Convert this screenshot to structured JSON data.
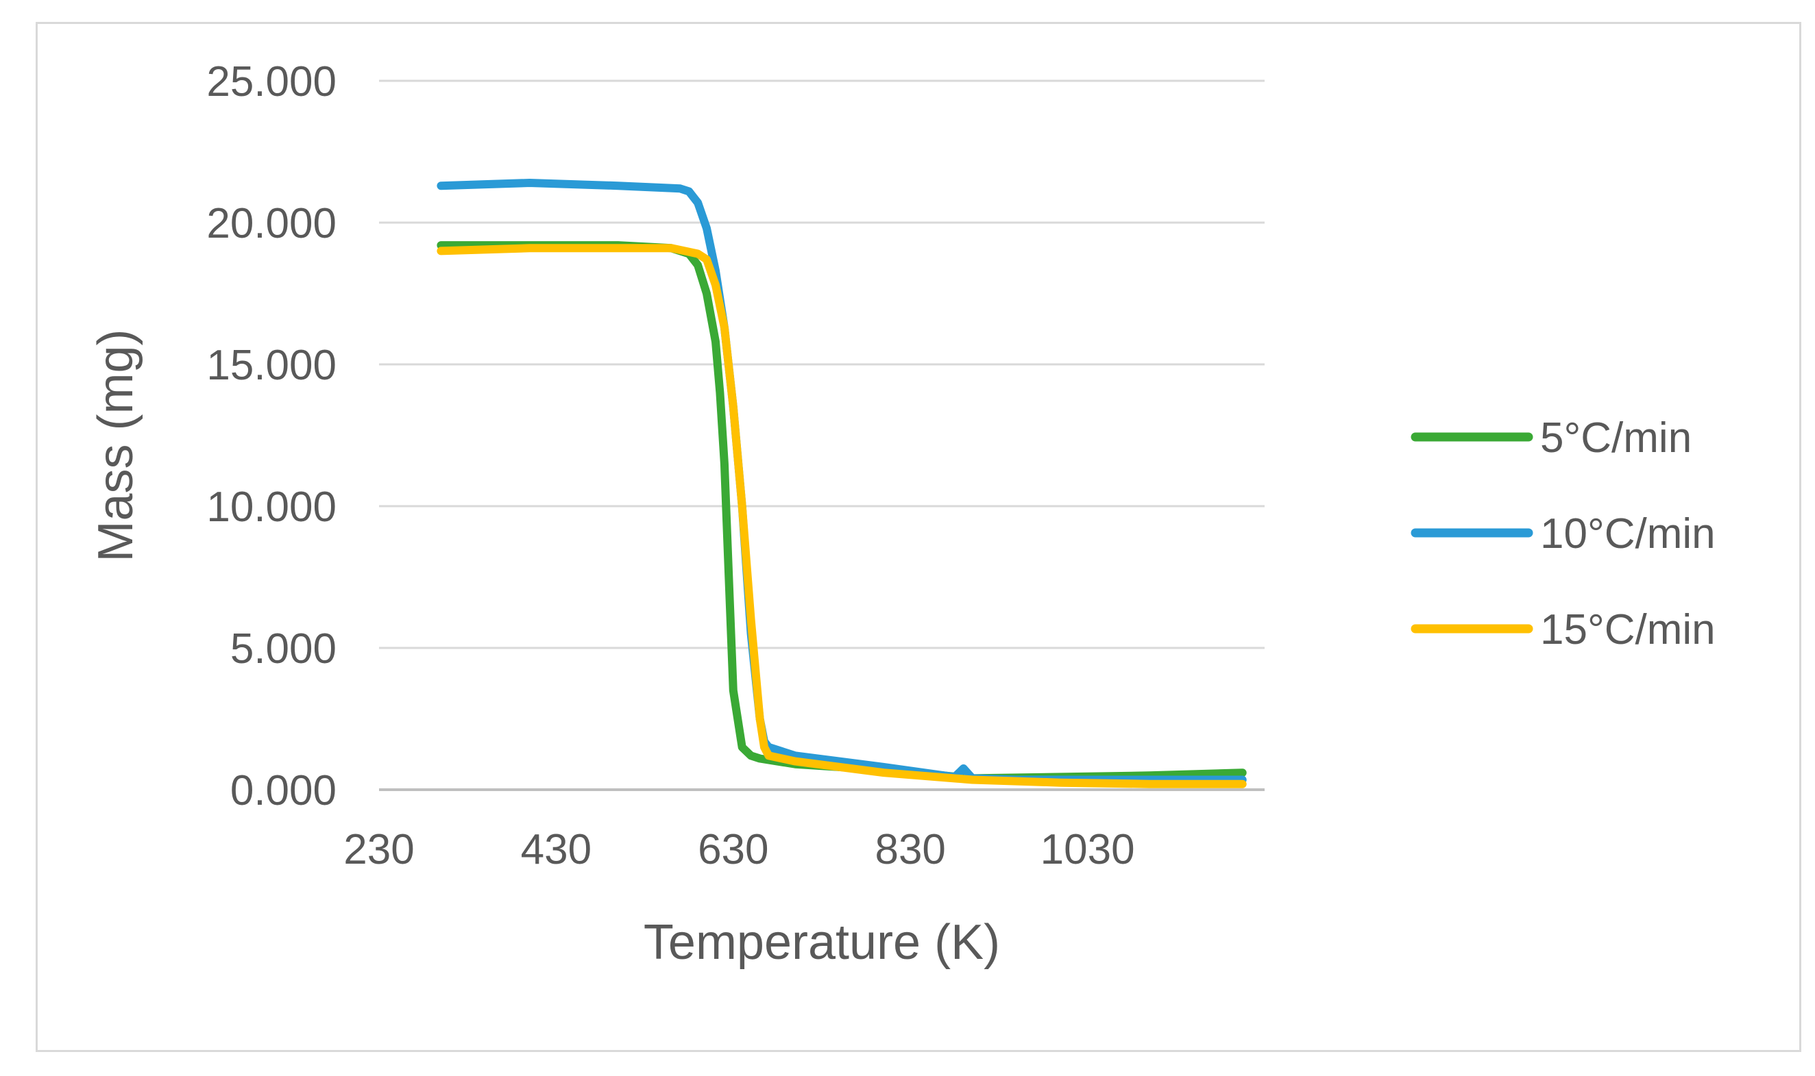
{
  "chart_data": {
    "type": "line",
    "title": "",
    "xlabel": "Temperature (K)",
    "ylabel": "Mass (mg)",
    "xlim": [
      230,
      1230
    ],
    "ylim": [
      0,
      25
    ],
    "x_ticks": [
      230,
      430,
      630,
      830,
      1030
    ],
    "x_tick_labels": [
      "230",
      "430",
      "630",
      "830",
      "1030"
    ],
    "y_ticks": [
      0,
      5,
      10,
      15,
      20,
      25
    ],
    "y_tick_labels": [
      "0.000",
      "5.000",
      "10.000",
      "15.000",
      "20.000",
      "25.000"
    ],
    "grid": "horizontal",
    "legend_position": "right",
    "series": [
      {
        "name": "5°C/min",
        "color": "#3aa935",
        "x": [
          300,
          400,
          500,
          560,
          580,
          590,
          600,
          610,
          615,
          620,
          625,
          630,
          640,
          650,
          660,
          700,
          800,
          900,
          1000,
          1100,
          1205
        ],
        "y": [
          19.2,
          19.2,
          19.2,
          19.1,
          18.9,
          18.5,
          17.5,
          15.8,
          14.0,
          11.5,
          7.5,
          3.5,
          1.5,
          1.2,
          1.1,
          0.9,
          0.7,
          0.4,
          0.45,
          0.5,
          0.6
        ]
      },
      {
        "name": "10°C/min",
        "color": "#2a9ad6",
        "x": [
          300,
          400,
          500,
          570,
          580,
          590,
          600,
          610,
          620,
          630,
          640,
          650,
          660,
          665,
          670,
          700,
          800,
          880,
          890,
          900,
          950,
          1050,
          1205
        ],
        "y": [
          21.3,
          21.4,
          21.3,
          21.2,
          21.1,
          20.7,
          19.8,
          18.3,
          16.3,
          13.5,
          10.0,
          5.5,
          2.5,
          1.7,
          1.5,
          1.2,
          0.8,
          0.45,
          0.75,
          0.4,
          0.35,
          0.35,
          0.35
        ]
      },
      {
        "name": "15°C/min",
        "color": "#ffc000",
        "x": [
          300,
          400,
          500,
          560,
          590,
          600,
          610,
          620,
          630,
          640,
          650,
          660,
          665,
          670,
          700,
          800,
          900,
          1000,
          1100,
          1205
        ],
        "y": [
          19.0,
          19.1,
          19.1,
          19.1,
          18.9,
          18.7,
          17.8,
          16.3,
          13.5,
          10.0,
          6.0,
          2.5,
          1.5,
          1.2,
          1.0,
          0.6,
          0.35,
          0.25,
          0.2,
          0.2
        ]
      }
    ]
  }
}
